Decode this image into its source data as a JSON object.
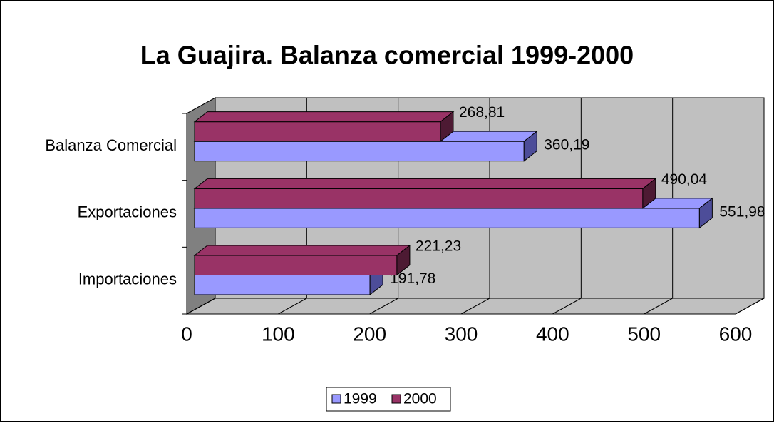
{
  "chart_data": {
    "type": "bar3d_horizontal",
    "title": "La Guajira. Balanza comercial 1999-2000",
    "categories": [
      "Importaciones",
      "Exportaciones",
      "Balanza Comercial"
    ],
    "series": [
      {
        "name": "1999",
        "color": "#9999ff",
        "side": "#4d4d99",
        "values": [
          191.78,
          551.98,
          360.19
        ],
        "value_labels": [
          "191,78",
          "551,98",
          "360,19"
        ]
      },
      {
        "name": "2000",
        "color": "#993366",
        "side": "#4d1a33",
        "values": [
          221.23,
          490.04,
          268.81
        ],
        "value_labels": [
          "221,23",
          "490,04",
          "268,81"
        ]
      }
    ],
    "xlim": [
      0,
      600
    ],
    "xticks": [
      0,
      100,
      200,
      300,
      400,
      500,
      600
    ],
    "grid": true,
    "legend": "bottom"
  }
}
